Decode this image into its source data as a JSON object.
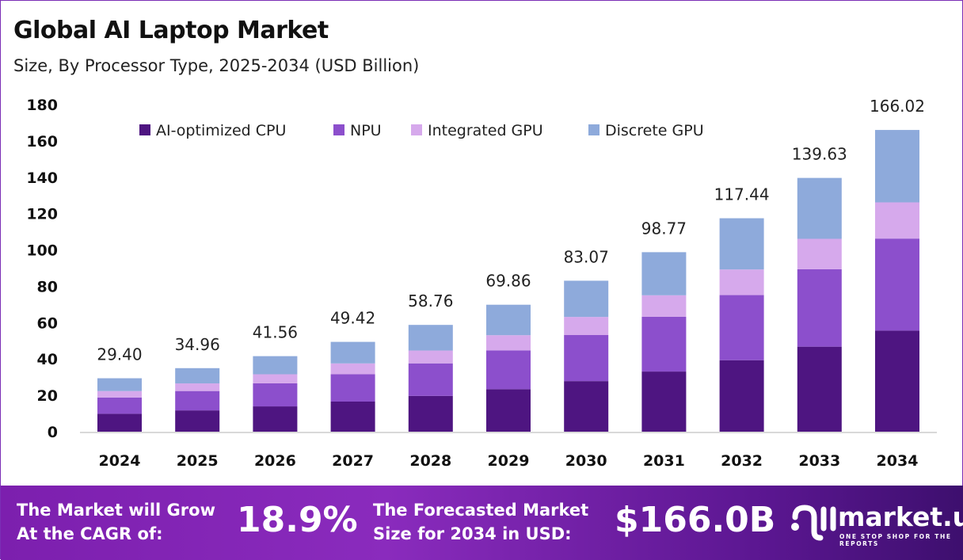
{
  "chart_data": {
    "type": "bar",
    "stacked": true,
    "title": "Global AI Laptop Market",
    "subtitle": "Size, By Processor Type, 2025-2034 (USD Billion)",
    "categories": [
      "2024",
      "2025",
      "2026",
      "2027",
      "2028",
      "2029",
      "2030",
      "2031",
      "2032",
      "2033",
      "2034"
    ],
    "series": [
      {
        "name": "AI-optimized CPU",
        "color": "#4e1581",
        "values": [
          9.85,
          11.71,
          13.92,
          16.56,
          19.68,
          23.4,
          27.83,
          33.09,
          39.34,
          46.78,
          55.62
        ]
      },
      {
        "name": "NPU",
        "color": "#8c4fcc",
        "values": [
          8.97,
          10.66,
          12.68,
          15.07,
          17.92,
          21.31,
          25.34,
          30.12,
          35.82,
          42.59,
          50.64
        ]
      },
      {
        "name": "Integrated GPU",
        "color": "#d6a9ec",
        "values": [
          3.53,
          4.2,
          4.99,
          5.93,
          7.05,
          8.38,
          9.97,
          11.85,
          14.09,
          16.76,
          19.92
        ]
      },
      {
        "name": "Discrete GPU",
        "color": "#8eaadb",
        "values": [
          7.05,
          8.39,
          9.97,
          11.86,
          14.11,
          16.77,
          19.93,
          23.71,
          28.19,
          33.5,
          39.84
        ]
      }
    ],
    "totals": [
      "29.40",
      "34.96",
      "41.56",
      "49.42",
      "58.76",
      "69.86",
      "83.07",
      "98.77",
      "117.44",
      "139.63",
      "166.02"
    ],
    "yticks": [
      "0",
      "20",
      "40",
      "60",
      "80",
      "100",
      "120",
      "140",
      "160",
      "180"
    ],
    "ylim": [
      0,
      180
    ],
    "grid": false,
    "legend": "top"
  },
  "footer": {
    "cagr_label_1": "The Market will Grow",
    "cagr_label_2": "At the CAGR of:",
    "cagr_value": "18.9%",
    "forecast_label_1": "The Forecasted Market",
    "forecast_label_2": "Size for 2034 in USD:",
    "forecast_value": "$166.0B",
    "logo_name": "market.us",
    "logo_tagline": "ONE STOP SHOP FOR THE REPORTS"
  }
}
